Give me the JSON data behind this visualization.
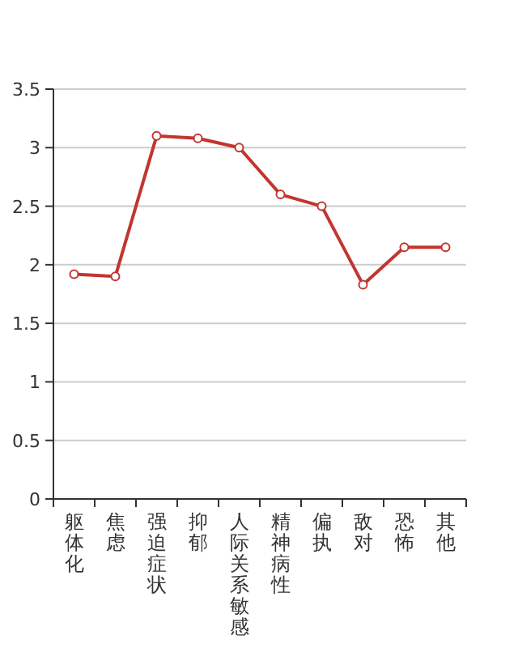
{
  "chart_data": {
    "type": "line",
    "categories": [
      "躯体化",
      "焦虑",
      "强迫症状",
      "抑郁",
      "人际关系敏感",
      "精神病性",
      "偏执",
      "敌对",
      "恐怖",
      "其他"
    ],
    "series": [
      {
        "color": "#c23531",
        "values": [
          1.92,
          1.9,
          3.1,
          3.08,
          3.0,
          2.6,
          2.5,
          1.83,
          2.15,
          2.15
        ]
      }
    ],
    "ylim": [
      0,
      3.5
    ],
    "yticks": [
      0,
      0.5,
      1,
      1.5,
      2,
      2.5,
      3,
      3.5
    ],
    "grid": "y",
    "marker": "circle",
    "line_style": "solid"
  }
}
